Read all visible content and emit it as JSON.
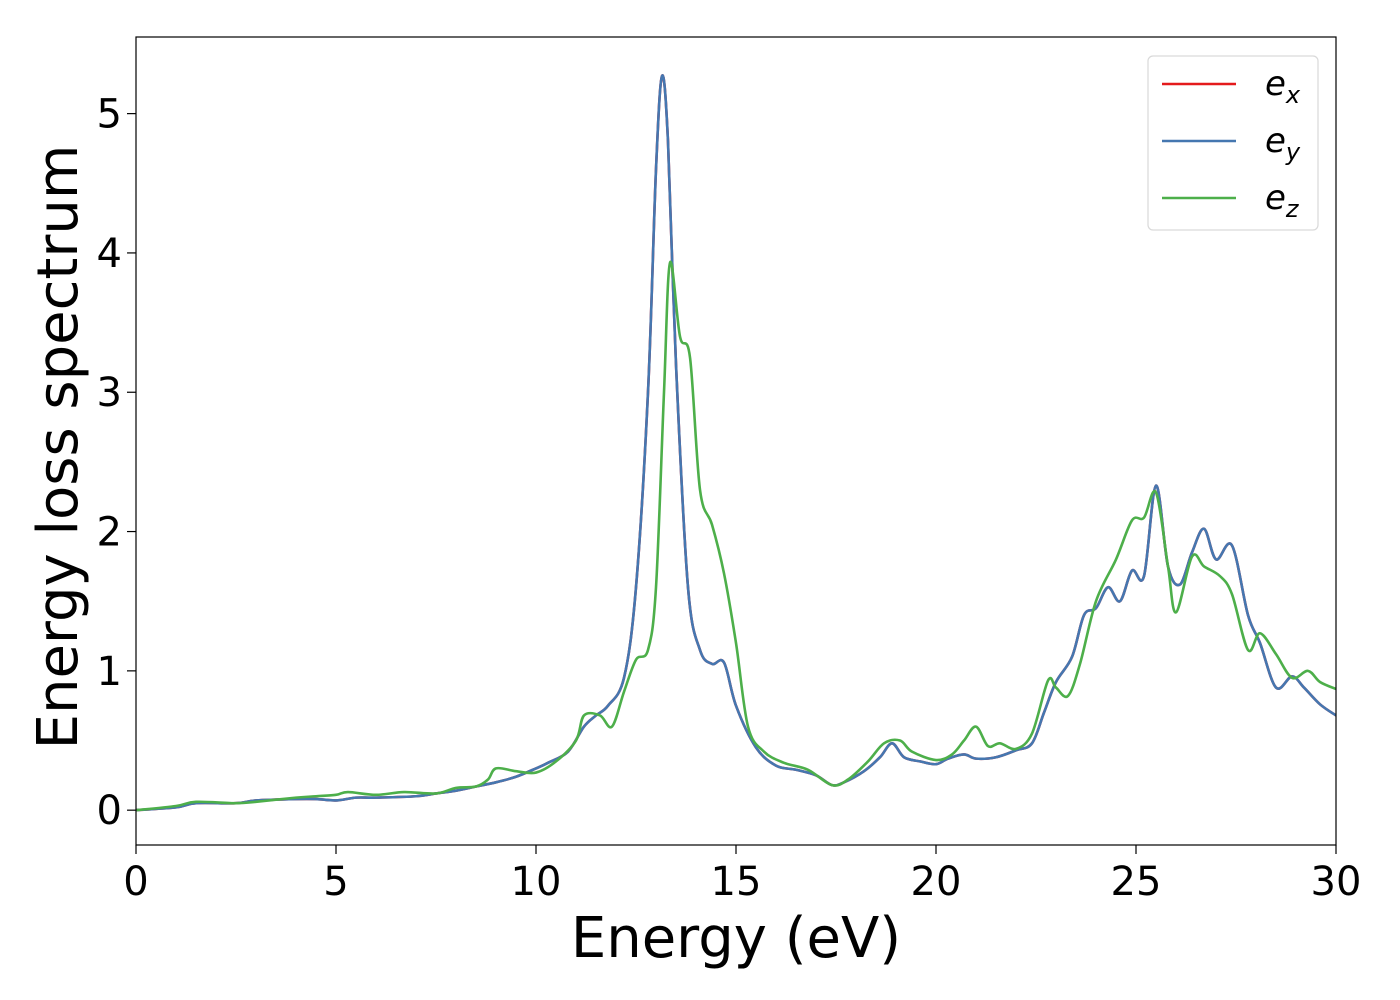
{
  "chart_data": {
    "type": "line",
    "title": "",
    "xlabel": "Energy (eV)",
    "ylabel": "Energy loss spectrum",
    "xlim": [
      0,
      30
    ],
    "ylim": [
      -0.25,
      5.55
    ],
    "xticks": [
      0,
      5,
      10,
      15,
      20,
      25,
      30
    ],
    "yticks": [
      0,
      1,
      2,
      3,
      4,
      5
    ],
    "grid": false,
    "legend_position": "top-right",
    "series": [
      {
        "name": "e_x",
        "legend_base": "e",
        "legend_sub": "x",
        "color": "#e41a1c",
        "points": [
          [
            0,
            0.0
          ],
          [
            1,
            0.02
          ],
          [
            1.5,
            0.05
          ],
          [
            2.5,
            0.05
          ],
          [
            3,
            0.07
          ],
          [
            4,
            0.08
          ],
          [
            4.5,
            0.08
          ],
          [
            5,
            0.07
          ],
          [
            5.5,
            0.09
          ],
          [
            6,
            0.09
          ],
          [
            7,
            0.1
          ],
          [
            7.5,
            0.12
          ],
          [
            8,
            0.14
          ],
          [
            8.5,
            0.17
          ],
          [
            9,
            0.2
          ],
          [
            9.5,
            0.24
          ],
          [
            10,
            0.3
          ],
          [
            10.3,
            0.34
          ],
          [
            10.8,
            0.42
          ],
          [
            11.2,
            0.6
          ],
          [
            11.5,
            0.68
          ],
          [
            11.8,
            0.75
          ],
          [
            12.2,
            0.95
          ],
          [
            12.5,
            1.6
          ],
          [
            12.8,
            3.0
          ],
          [
            13.0,
            4.6
          ],
          [
            13.15,
            5.27
          ],
          [
            13.3,
            4.8
          ],
          [
            13.5,
            3.2
          ],
          [
            13.8,
            1.6
          ],
          [
            14.1,
            1.15
          ],
          [
            14.4,
            1.05
          ],
          [
            14.7,
            1.06
          ],
          [
            15.0,
            0.75
          ],
          [
            15.5,
            0.45
          ],
          [
            16,
            0.32
          ],
          [
            16.5,
            0.29
          ],
          [
            17,
            0.25
          ],
          [
            17.4,
            0.18
          ],
          [
            17.7,
            0.2
          ],
          [
            18.2,
            0.28
          ],
          [
            18.6,
            0.38
          ],
          [
            18.9,
            0.48
          ],
          [
            19.2,
            0.38
          ],
          [
            19.6,
            0.35
          ],
          [
            20,
            0.33
          ],
          [
            20.3,
            0.37
          ],
          [
            20.7,
            0.4
          ],
          [
            21,
            0.37
          ],
          [
            21.5,
            0.38
          ],
          [
            22,
            0.43
          ],
          [
            22.4,
            0.48
          ],
          [
            22.7,
            0.7
          ],
          [
            23.0,
            0.92
          ],
          [
            23.4,
            1.1
          ],
          [
            23.7,
            1.4
          ],
          [
            24.0,
            1.45
          ],
          [
            24.3,
            1.6
          ],
          [
            24.6,
            1.5
          ],
          [
            24.9,
            1.72
          ],
          [
            25.2,
            1.68
          ],
          [
            25.5,
            2.33
          ],
          [
            25.8,
            1.75
          ],
          [
            26.1,
            1.62
          ],
          [
            26.4,
            1.85
          ],
          [
            26.7,
            2.02
          ],
          [
            27.0,
            1.8
          ],
          [
            27.4,
            1.9
          ],
          [
            27.8,
            1.4
          ],
          [
            28.1,
            1.2
          ],
          [
            28.5,
            0.88
          ],
          [
            28.9,
            0.96
          ],
          [
            29.2,
            0.88
          ],
          [
            29.6,
            0.76
          ],
          [
            30,
            0.68
          ]
        ]
      },
      {
        "name": "e_y",
        "legend_base": "e",
        "legend_sub": "y",
        "color": "#4577b0",
        "points": [
          [
            0,
            0.0
          ],
          [
            1,
            0.02
          ],
          [
            1.5,
            0.05
          ],
          [
            2.5,
            0.05
          ],
          [
            3,
            0.07
          ],
          [
            4,
            0.08
          ],
          [
            4.5,
            0.08
          ],
          [
            5,
            0.07
          ],
          [
            5.5,
            0.09
          ],
          [
            6,
            0.09
          ],
          [
            7,
            0.1
          ],
          [
            7.5,
            0.12
          ],
          [
            8,
            0.14
          ],
          [
            8.5,
            0.17
          ],
          [
            9,
            0.2
          ],
          [
            9.5,
            0.24
          ],
          [
            10,
            0.3
          ],
          [
            10.3,
            0.34
          ],
          [
            10.8,
            0.42
          ],
          [
            11.2,
            0.6
          ],
          [
            11.5,
            0.68
          ],
          [
            11.8,
            0.75
          ],
          [
            12.2,
            0.95
          ],
          [
            12.5,
            1.6
          ],
          [
            12.8,
            3.0
          ],
          [
            13.0,
            4.6
          ],
          [
            13.15,
            5.27
          ],
          [
            13.3,
            4.8
          ],
          [
            13.5,
            3.2
          ],
          [
            13.8,
            1.6
          ],
          [
            14.1,
            1.15
          ],
          [
            14.4,
            1.05
          ],
          [
            14.7,
            1.06
          ],
          [
            15.0,
            0.75
          ],
          [
            15.5,
            0.45
          ],
          [
            16,
            0.32
          ],
          [
            16.5,
            0.29
          ],
          [
            17,
            0.25
          ],
          [
            17.4,
            0.18
          ],
          [
            17.7,
            0.2
          ],
          [
            18.2,
            0.28
          ],
          [
            18.6,
            0.38
          ],
          [
            18.9,
            0.48
          ],
          [
            19.2,
            0.38
          ],
          [
            19.6,
            0.35
          ],
          [
            20,
            0.33
          ],
          [
            20.3,
            0.37
          ],
          [
            20.7,
            0.4
          ],
          [
            21,
            0.37
          ],
          [
            21.5,
            0.38
          ],
          [
            22,
            0.43
          ],
          [
            22.4,
            0.48
          ],
          [
            22.7,
            0.7
          ],
          [
            23.0,
            0.92
          ],
          [
            23.4,
            1.1
          ],
          [
            23.7,
            1.4
          ],
          [
            24.0,
            1.45
          ],
          [
            24.3,
            1.6
          ],
          [
            24.6,
            1.5
          ],
          [
            24.9,
            1.72
          ],
          [
            25.2,
            1.68
          ],
          [
            25.5,
            2.33
          ],
          [
            25.8,
            1.75
          ],
          [
            26.1,
            1.62
          ],
          [
            26.4,
            1.85
          ],
          [
            26.7,
            2.02
          ],
          [
            27.0,
            1.8
          ],
          [
            27.4,
            1.9
          ],
          [
            27.8,
            1.4
          ],
          [
            28.1,
            1.2
          ],
          [
            28.5,
            0.88
          ],
          [
            28.9,
            0.96
          ],
          [
            29.2,
            0.88
          ],
          [
            29.6,
            0.76
          ],
          [
            30,
            0.68
          ]
        ]
      },
      {
        "name": "e_z",
        "legend_base": "e",
        "legend_sub": "z",
        "color": "#4daf4a",
        "points": [
          [
            0,
            0.0
          ],
          [
            1,
            0.03
          ],
          [
            1.5,
            0.06
          ],
          [
            2.5,
            0.05
          ],
          [
            3,
            0.06
          ],
          [
            4,
            0.09
          ],
          [
            4.5,
            0.1
          ],
          [
            5,
            0.11
          ],
          [
            5.3,
            0.13
          ],
          [
            6,
            0.11
          ],
          [
            6.7,
            0.13
          ],
          [
            7.5,
            0.12
          ],
          [
            8,
            0.16
          ],
          [
            8.5,
            0.17
          ],
          [
            8.8,
            0.22
          ],
          [
            9.0,
            0.3
          ],
          [
            9.5,
            0.28
          ],
          [
            10,
            0.27
          ],
          [
            10.5,
            0.35
          ],
          [
            11,
            0.5
          ],
          [
            11.2,
            0.68
          ],
          [
            11.6,
            0.68
          ],
          [
            11.9,
            0.6
          ],
          [
            12.2,
            0.85
          ],
          [
            12.5,
            1.08
          ],
          [
            12.8,
            1.15
          ],
          [
            13.0,
            1.6
          ],
          [
            13.2,
            3.0
          ],
          [
            13.35,
            3.93
          ],
          [
            13.6,
            3.4
          ],
          [
            13.85,
            3.25
          ],
          [
            14.1,
            2.3
          ],
          [
            14.4,
            2.05
          ],
          [
            14.7,
            1.7
          ],
          [
            15.0,
            1.2
          ],
          [
            15.3,
            0.6
          ],
          [
            15.7,
            0.42
          ],
          [
            16.2,
            0.34
          ],
          [
            16.8,
            0.29
          ],
          [
            17.4,
            0.18
          ],
          [
            17.8,
            0.22
          ],
          [
            18.3,
            0.35
          ],
          [
            18.7,
            0.48
          ],
          [
            19.1,
            0.5
          ],
          [
            19.4,
            0.42
          ],
          [
            20,
            0.36
          ],
          [
            20.4,
            0.4
          ],
          [
            20.7,
            0.5
          ],
          [
            21.0,
            0.6
          ],
          [
            21.3,
            0.46
          ],
          [
            21.6,
            0.48
          ],
          [
            22,
            0.44
          ],
          [
            22.4,
            0.55
          ],
          [
            22.8,
            0.93
          ],
          [
            23.0,
            0.88
          ],
          [
            23.3,
            0.82
          ],
          [
            23.6,
            1.05
          ],
          [
            24.0,
            1.5
          ],
          [
            24.5,
            1.8
          ],
          [
            24.9,
            2.08
          ],
          [
            25.2,
            2.1
          ],
          [
            25.5,
            2.28
          ],
          [
            25.8,
            1.75
          ],
          [
            26.0,
            1.42
          ],
          [
            26.4,
            1.82
          ],
          [
            26.7,
            1.75
          ],
          [
            27.1,
            1.68
          ],
          [
            27.4,
            1.55
          ],
          [
            27.8,
            1.15
          ],
          [
            28.1,
            1.27
          ],
          [
            28.5,
            1.12
          ],
          [
            28.9,
            0.95
          ],
          [
            29.3,
            1.0
          ],
          [
            29.6,
            0.92
          ],
          [
            30,
            0.87
          ]
        ]
      }
    ]
  }
}
